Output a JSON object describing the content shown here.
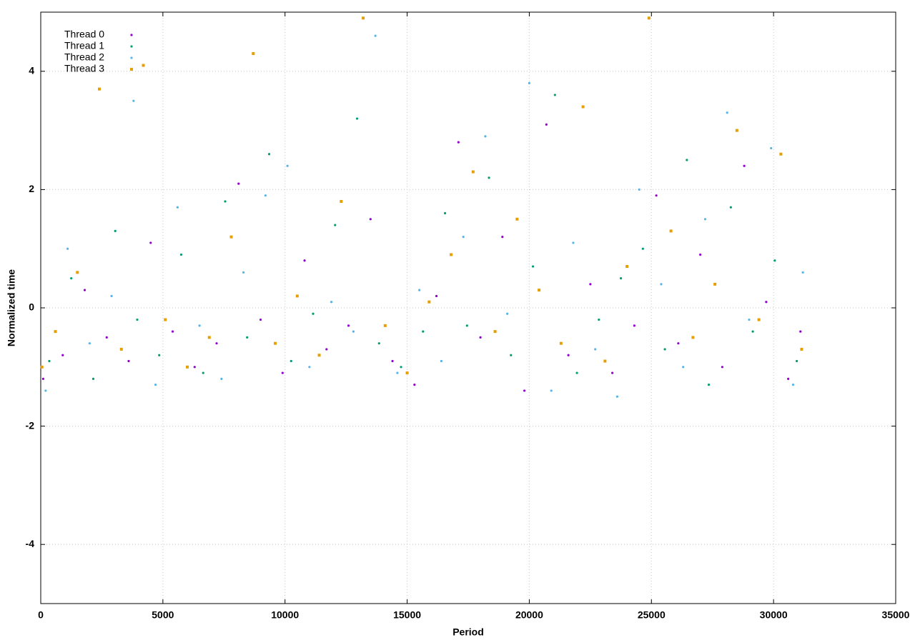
{
  "chart_data": {
    "type": "scatter",
    "xlabel": "Period",
    "ylabel": "Normalized time",
    "xlim": [
      0,
      35000
    ],
    "ylim": [
      -5,
      5
    ],
    "xticks": [
      0,
      5000,
      10000,
      15000,
      20000,
      25000,
      30000,
      35000
    ],
    "yticks": [
      -4,
      -2,
      0,
      2,
      4
    ],
    "grid": true,
    "legend": "upper left",
    "series": [
      {
        "name": "Thread 0",
        "color": "#9400d3",
        "marker": "dot",
        "x": [
          100,
          900,
          1800,
          2700,
          3600,
          4500,
          5400,
          6300,
          7200,
          8100,
          9000,
          9900,
          10800,
          11700,
          12600,
          13500,
          14400,
          15300,
          16200,
          17100,
          18000,
          18900,
          19800,
          20700,
          21600,
          22500,
          23400,
          24300,
          25200,
          26100,
          27000,
          27900,
          28800,
          29700,
          30600,
          31100
        ],
        "y": [
          -1.2,
          -0.8,
          0.3,
          -0.5,
          -0.9,
          1.1,
          -0.4,
          -1.0,
          -0.6,
          2.1,
          -0.2,
          -1.1,
          0.8,
          -0.7,
          -0.3,
          1.5,
          -0.9,
          -1.3,
          0.2,
          2.8,
          -0.5,
          1.2,
          -1.4,
          3.1,
          -0.8,
          0.4,
          -1.1,
          -0.3,
          1.9,
          -0.6,
          0.9,
          -1.0,
          2.4,
          0.1,
          -1.2,
          -0.4
        ]
      },
      {
        "name": "Thread 1",
        "color": "#009e73",
        "marker": "dot",
        "x": [
          350,
          1250,
          2150,
          3050,
          3950,
          4850,
          5750,
          6650,
          7550,
          8450,
          9350,
          10250,
          11150,
          12050,
          12950,
          13850,
          14750,
          15650,
          16550,
          17450,
          18350,
          19250,
          20150,
          21050,
          21950,
          22850,
          23750,
          24650,
          25550,
          26450,
          27350,
          28250,
          29150,
          30050,
          30950
        ],
        "y": [
          -0.9,
          0.5,
          -1.2,
          1.3,
          -0.2,
          -0.8,
          0.9,
          -1.1,
          1.8,
          -0.5,
          2.6,
          -0.9,
          -0.1,
          1.4,
          3.2,
          -0.6,
          -1.0,
          -0.4,
          1.6,
          -0.3,
          2.2,
          -0.8,
          0.7,
          3.6,
          -1.1,
          -0.2,
          0.5,
          1.0,
          -0.7,
          2.5,
          -1.3,
          1.7,
          -0.4,
          0.8,
          -0.9
        ]
      },
      {
        "name": "Thread 2",
        "color": "#56b4e9",
        "marker": "dot",
        "x": [
          200,
          1100,
          2000,
          2900,
          3800,
          4700,
          5600,
          6500,
          7400,
          8300,
          9200,
          10100,
          11000,
          11900,
          12800,
          13700,
          14600,
          15500,
          16400,
          17300,
          18200,
          19100,
          20000,
          20900,
          21800,
          22700,
          23600,
          24500,
          25400,
          26300,
          27200,
          28100,
          29000,
          29900,
          30800,
          31200
        ],
        "y": [
          -1.4,
          1.0,
          -0.6,
          0.2,
          3.5,
          -1.3,
          1.7,
          -0.3,
          -1.2,
          0.6,
          1.9,
          2.4,
          -1.0,
          0.1,
          -0.4,
          4.6,
          -1.1,
          0.3,
          -0.9,
          1.2,
          2.9,
          -0.1,
          3.8,
          -1.4,
          1.1,
          -0.7,
          -1.5,
          2.0,
          0.4,
          -1.0,
          1.5,
          3.3,
          -0.2,
          2.7,
          -1.3,
          0.6
        ]
      },
      {
        "name": "Thread 3",
        "color": "#e69f00",
        "marker": "square",
        "x": [
          50,
          600,
          1500,
          2400,
          3300,
          4200,
          5100,
          6000,
          6900,
          7800,
          8700,
          9600,
          10500,
          11400,
          12300,
          13200,
          14100,
          15000,
          15900,
          16800,
          17700,
          18600,
          19500,
          20400,
          21300,
          22200,
          23100,
          24000,
          24900,
          25800,
          26700,
          27600,
          28500,
          29400,
          30300,
          31150
        ],
        "y": [
          -1.0,
          -0.4,
          0.6,
          3.7,
          -0.7,
          4.1,
          -0.2,
          -1.0,
          -0.5,
          1.2,
          4.3,
          -0.6,
          0.2,
          -0.8,
          1.8,
          4.9,
          -0.3,
          -1.1,
          0.1,
          0.9,
          2.3,
          -0.4,
          1.5,
          0.3,
          -0.6,
          3.4,
          -0.9,
          0.7,
          4.9,
          1.3,
          -0.5,
          0.4,
          3.0,
          -0.2,
          2.6,
          -0.7
        ]
      }
    ]
  }
}
